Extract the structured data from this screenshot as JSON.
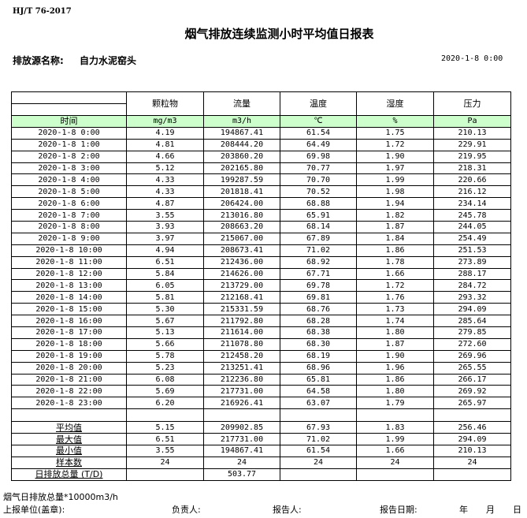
{
  "standard": "HJ/T  76-2017",
  "title": "烟气排放连续监测小时平均值日报表",
  "source_label": "排放源名称:",
  "source_name": "自力水泥窑头",
  "report_datetime": "2020-1-8 0:00",
  "table": {
    "columns": [
      "颗粒物",
      "流量",
      "温度",
      "湿度",
      "压力"
    ],
    "time_label": "时间",
    "units": [
      "mg/m3",
      "m3/h",
      "℃",
      "%",
      "Pa"
    ],
    "header_fill": "#ccffcc",
    "rows": [
      [
        "2020-1-8 0:00",
        "4.19",
        "194867.41",
        "61.54",
        "1.75",
        "210.13"
      ],
      [
        "2020-1-8 1:00",
        "4.81",
        "208444.20",
        "64.49",
        "1.72",
        "229.91"
      ],
      [
        "2020-1-8 2:00",
        "4.66",
        "203860.20",
        "69.98",
        "1.90",
        "219.95"
      ],
      [
        "2020-1-8 3:00",
        "5.12",
        "202165.80",
        "70.77",
        "1.97",
        "218.31"
      ],
      [
        "2020-1-8 4:00",
        "4.33",
        "199287.59",
        "70.70",
        "1.99",
        "220.66"
      ],
      [
        "2020-1-8 5:00",
        "4.33",
        "201818.41",
        "70.52",
        "1.98",
        "216.12"
      ],
      [
        "2020-1-8 6:00",
        "4.87",
        "206424.00",
        "68.88",
        "1.94",
        "234.14"
      ],
      [
        "2020-1-8 7:00",
        "3.55",
        "213016.80",
        "65.91",
        "1.82",
        "245.78"
      ],
      [
        "2020-1-8 8:00",
        "3.93",
        "208663.20",
        "68.14",
        "1.87",
        "244.05"
      ],
      [
        "2020-1-8 9:00",
        "3.97",
        "215067.00",
        "67.89",
        "1.84",
        "254.49"
      ],
      [
        "2020-1-8 10:00",
        "4.94",
        "208673.41",
        "71.02",
        "1.86",
        "251.53"
      ],
      [
        "2020-1-8 11:00",
        "6.51",
        "212436.00",
        "68.92",
        "1.78",
        "273.89"
      ],
      [
        "2020-1-8 12:00",
        "5.84",
        "214626.00",
        "67.71",
        "1.66",
        "288.17"
      ],
      [
        "2020-1-8 13:00",
        "6.05",
        "213729.00",
        "69.78",
        "1.72",
        "284.72"
      ],
      [
        "2020-1-8 14:00",
        "5.81",
        "212168.41",
        "69.81",
        "1.76",
        "293.32"
      ],
      [
        "2020-1-8 15:00",
        "5.30",
        "215331.59",
        "68.76",
        "1.73",
        "294.09"
      ],
      [
        "2020-1-8 16:00",
        "5.67",
        "211792.80",
        "68.28",
        "1.74",
        "285.64"
      ],
      [
        "2020-1-8 17:00",
        "5.13",
        "211614.00",
        "68.38",
        "1.80",
        "279.85"
      ],
      [
        "2020-1-8 18:00",
        "5.66",
        "211078.80",
        "68.30",
        "1.87",
        "272.60"
      ],
      [
        "2020-1-8 19:00",
        "5.78",
        "212458.20",
        "68.19",
        "1.90",
        "269.96"
      ],
      [
        "2020-1-8 20:00",
        "5.23",
        "213251.41",
        "68.96",
        "1.96",
        "265.55"
      ],
      [
        "2020-1-8 21:00",
        "6.08",
        "212236.80",
        "65.81",
        "1.86",
        "266.17"
      ],
      [
        "2020-1-8 22:00",
        "5.69",
        "217731.00",
        "64.58",
        "1.80",
        "269.92"
      ],
      [
        "2020-1-8 23:00",
        "6.20",
        "216926.41",
        "63.07",
        "1.79",
        "265.97"
      ]
    ],
    "summary": [
      [
        "平均值",
        "5.15",
        "209902.85",
        "67.93",
        "1.83",
        "256.46"
      ],
      [
        "最大值",
        "6.51",
        "217731.00",
        "71.02",
        "1.99",
        "294.09"
      ],
      [
        "最小值",
        "3.55",
        "194867.41",
        "61.54",
        "1.66",
        "210.13"
      ],
      [
        "样本数",
        "24",
        "24",
        "24",
        "24",
        "24"
      ],
      [
        "日排放总量 (T/D)",
        "",
        "503.77",
        "",
        "",
        ""
      ]
    ]
  },
  "footer": {
    "note": "烟气日排放总量*10000m3/h",
    "unit_label": "上报单位(盖章):",
    "responsible_label": "负责人:",
    "reporter_label": "报告人:",
    "report_date_label": "报告日期:",
    "year": "年",
    "month": "月",
    "day": "日"
  }
}
